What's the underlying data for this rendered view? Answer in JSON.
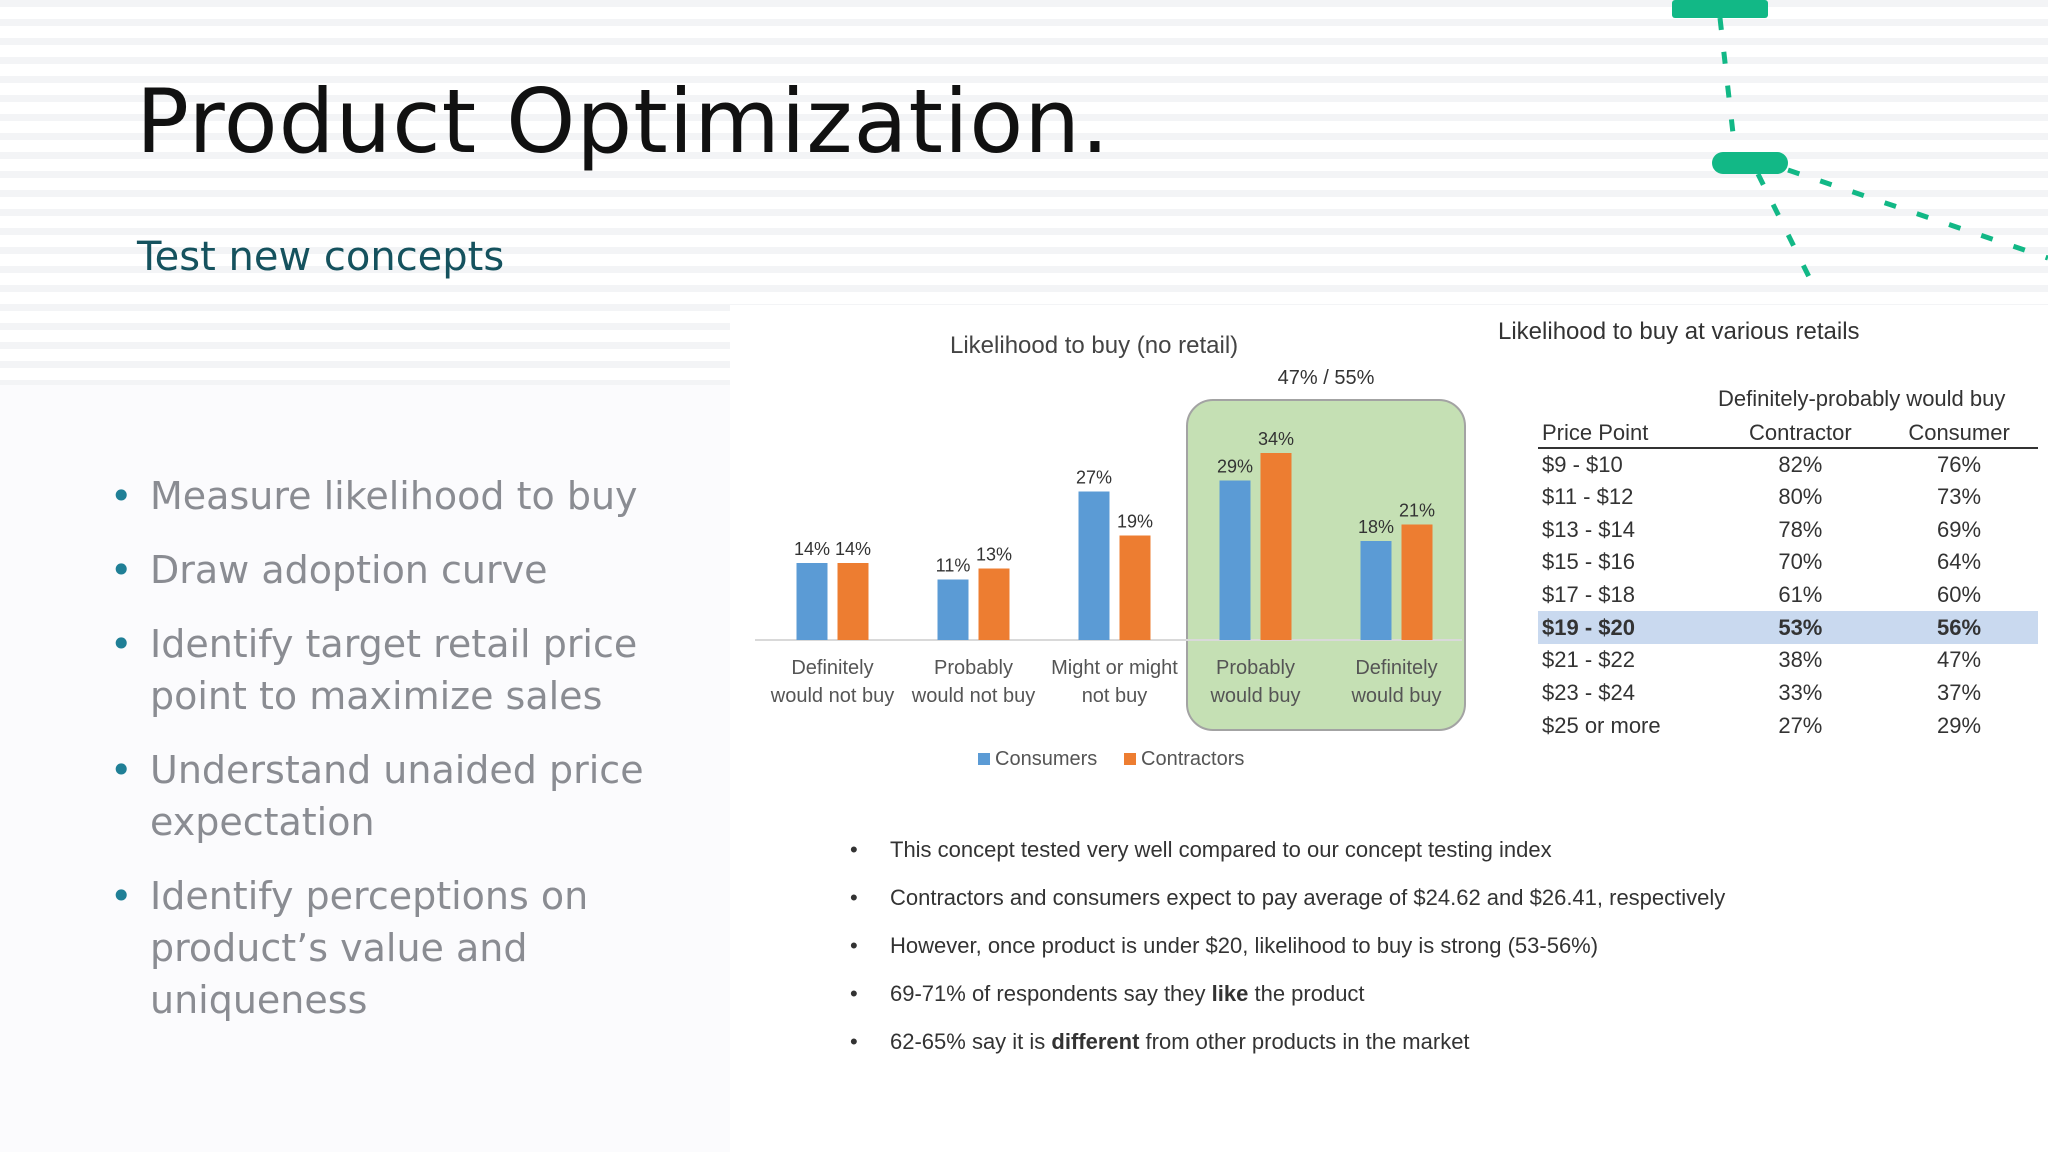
{
  "slide": {
    "title": "Product Optimization.",
    "subtitle": "Test new concepts"
  },
  "bullets": [
    "Measure likelihood to buy",
    "Draw adoption curve",
    "Identify target retail price point to maximize sales",
    "Understand unaided price expectation",
    "Identify perceptions on product’s value and uniqueness"
  ],
  "chart_data": {
    "type": "bar",
    "title": "Likelihood to buy (no retail)",
    "categories": [
      [
        "Definitely",
        "would not buy"
      ],
      [
        "Probably",
        "would not buy"
      ],
      [
        "Might or might",
        "not buy"
      ],
      [
        "Probably",
        "would buy"
      ],
      [
        "Definitely",
        "would buy"
      ]
    ],
    "series": [
      {
        "name": "Consumers",
        "color": "#5b9bd5",
        "values": [
          14,
          11,
          27,
          29,
          18
        ]
      },
      {
        "name": "Contractors",
        "color": "#ed7d31",
        "values": [
          14,
          13,
          19,
          34,
          21
        ]
      }
    ],
    "value_suffix": "%",
    "highlight": {
      "categories": [
        3,
        4
      ],
      "label": "47% / 55%",
      "color": "#c5e0b4",
      "border": "#a3a3a3"
    },
    "legend_position": "bottom"
  },
  "retail_table": {
    "title": "Likelihood to buy at various retails",
    "group_header": "Definitely-probably would buy",
    "columns": [
      "Price Point",
      "Contractor",
      "Consumer"
    ],
    "highlight_color": "#c9d9ef",
    "rows": [
      {
        "price": "$9 - $10",
        "contractor": "82%",
        "consumer": "76%"
      },
      {
        "price": "$11 - $12",
        "contractor": "80%",
        "consumer": "73%"
      },
      {
        "price": "$13 - $14",
        "contractor": "78%",
        "consumer": "69%"
      },
      {
        "price": "$15 - $16",
        "contractor": "70%",
        "consumer": "64%"
      },
      {
        "price": "$17 - $18",
        "contractor": "61%",
        "consumer": "60%"
      },
      {
        "price": "$19 - $20",
        "contractor": "53%",
        "consumer": "56%",
        "highlight": true
      },
      {
        "price": "$21 - $22",
        "contractor": "38%",
        "consumer": "47%"
      },
      {
        "price": "$23 - $24",
        "contractor": "33%",
        "consumer": "37%"
      },
      {
        "price": "$25 or more",
        "contractor": "27%",
        "consumer": "29%"
      }
    ]
  },
  "notes": [
    {
      "parts": [
        {
          "text": "This concept tested very well compared to our concept testing index"
        }
      ]
    },
    {
      "parts": [
        {
          "text": "Contractors and consumers expect to pay average of $24.62 and $26.41, respectively"
        }
      ]
    },
    {
      "parts": [
        {
          "text": "However, once product is under $20, likelihood to buy is strong (53-56%)"
        }
      ]
    },
    {
      "parts": [
        {
          "text": "69-71% of respondents say they "
        },
        {
          "text": "like",
          "bold": true
        },
        {
          "text": " the product"
        }
      ]
    },
    {
      "parts": [
        {
          "text": "62-65% say it is "
        },
        {
          "text": "different",
          "bold": true
        },
        {
          "text": " from other products in the market"
        }
      ]
    }
  ],
  "colors": {
    "accent": "#1f7f96",
    "deco": "#12b886",
    "title": "#111111",
    "subtitle": "#15525e"
  }
}
